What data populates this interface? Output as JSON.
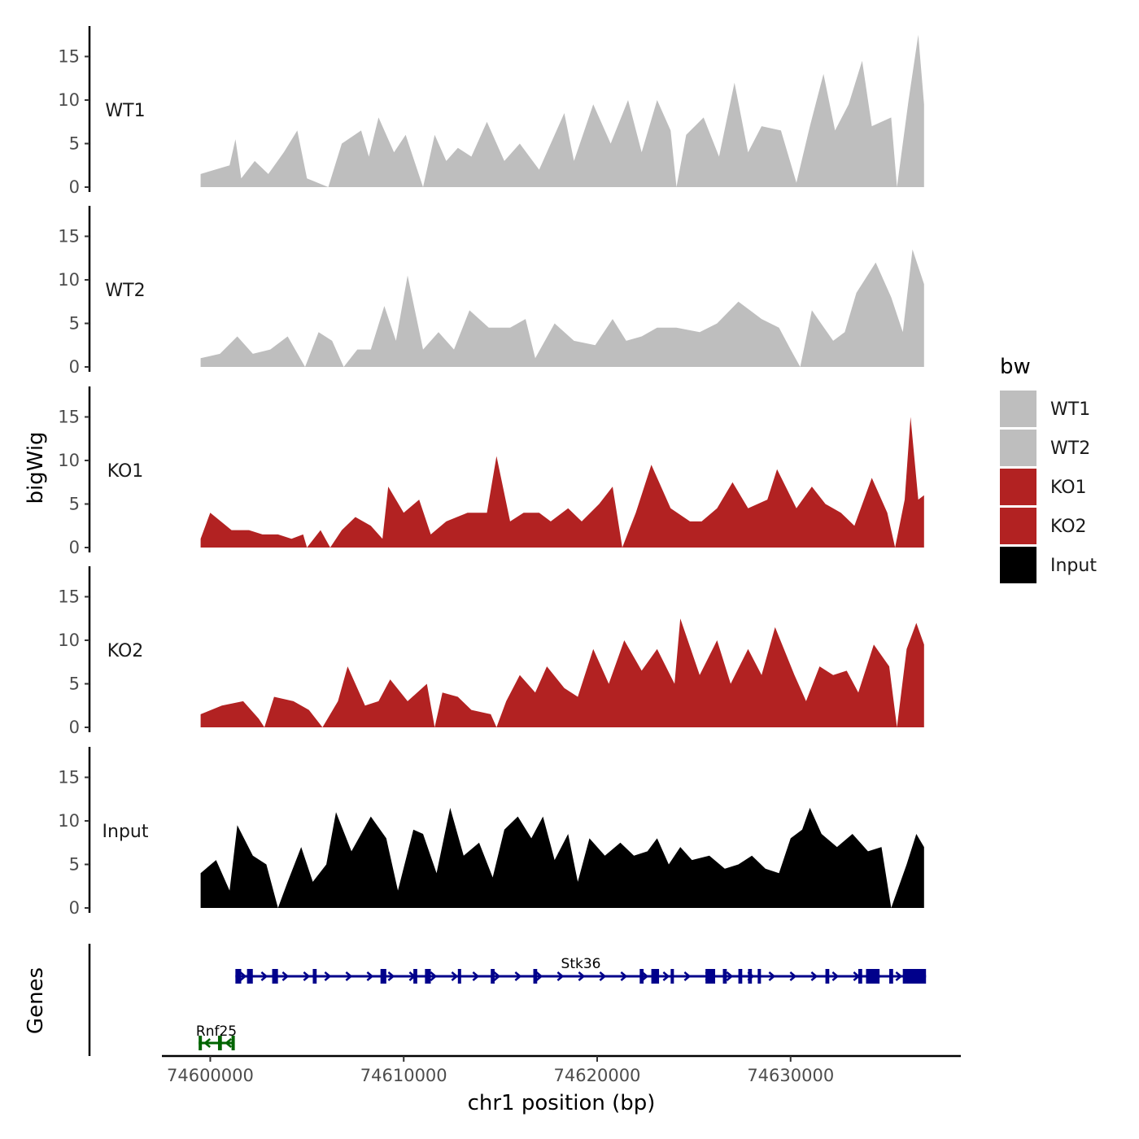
{
  "chart_data": {
    "type": "area",
    "region": {
      "chrom": "chr1",
      "start": 74599500,
      "end": 74637000
    },
    "xlabel": "chr1 position (bp)",
    "ylabel": "bigWig",
    "genes_label": "Genes",
    "xlim": [
      74597500,
      74638800
    ],
    "ylim": [
      0,
      18.5
    ],
    "yticks": [
      0,
      5,
      10,
      15
    ],
    "xticks": [
      74600000,
      74610000,
      74620000,
      74630000
    ],
    "xtick_labels": [
      "74600000",
      "74610000",
      "74620000",
      "74630000"
    ],
    "legend": {
      "title": "bw",
      "entries": [
        {
          "label": "WT1",
          "color": "#bebebe"
        },
        {
          "label": "WT2",
          "color": "#bebebe"
        },
        {
          "label": "KO1",
          "color": "#b22222"
        },
        {
          "label": "KO2",
          "color": "#b22222"
        },
        {
          "label": "Input",
          "color": "#000000"
        }
      ]
    },
    "series": [
      {
        "name": "WT1",
        "color": "#bebebe",
        "points": [
          [
            74599500,
            1.5
          ],
          [
            74601000,
            2.5
          ],
          [
            74601300,
            5.5
          ],
          [
            74601600,
            1
          ],
          [
            74602300,
            3
          ],
          [
            74603000,
            1.5
          ],
          [
            74603800,
            4
          ],
          [
            74604500,
            6.5
          ],
          [
            74605000,
            1
          ],
          [
            74606100,
            0
          ],
          [
            74606800,
            5
          ],
          [
            74607800,
            6.5
          ],
          [
            74608200,
            3.5
          ],
          [
            74608700,
            8
          ],
          [
            74609500,
            4
          ],
          [
            74610100,
            6
          ],
          [
            74611000,
            0
          ],
          [
            74611600,
            6
          ],
          [
            74612200,
            3
          ],
          [
            74612800,
            4.5
          ],
          [
            74613500,
            3.5
          ],
          [
            74614300,
            7.5
          ],
          [
            74615200,
            3
          ],
          [
            74616000,
            5
          ],
          [
            74617000,
            2
          ],
          [
            74618300,
            8.5
          ],
          [
            74618800,
            3
          ],
          [
            74619800,
            9.5
          ],
          [
            74620700,
            5
          ],
          [
            74621600,
            10
          ],
          [
            74622300,
            4
          ],
          [
            74623100,
            10
          ],
          [
            74623800,
            6.5
          ],
          [
            74624100,
            0
          ],
          [
            74624600,
            6
          ],
          [
            74625500,
            8
          ],
          [
            74626300,
            3.5
          ],
          [
            74627100,
            12
          ],
          [
            74627800,
            4
          ],
          [
            74628500,
            7
          ],
          [
            74629500,
            6.5
          ],
          [
            74630300,
            0.5
          ],
          [
            74631000,
            7
          ],
          [
            74631700,
            13
          ],
          [
            74632300,
            6.5
          ],
          [
            74633000,
            9.5
          ],
          [
            74633700,
            14.5
          ],
          [
            74634200,
            7
          ],
          [
            74635200,
            8
          ],
          [
            74635500,
            0
          ],
          [
            74636100,
            10
          ],
          [
            74636600,
            17.5
          ],
          [
            74636900,
            9.5
          ]
        ]
      },
      {
        "name": "WT2",
        "color": "#bebebe",
        "points": [
          [
            74599500,
            1
          ],
          [
            74600500,
            1.5
          ],
          [
            74601400,
            3.5
          ],
          [
            74602200,
            1.5
          ],
          [
            74603100,
            2
          ],
          [
            74604000,
            3.5
          ],
          [
            74604900,
            0
          ],
          [
            74605600,
            4
          ],
          [
            74606300,
            3
          ],
          [
            74606900,
            0
          ],
          [
            74607600,
            2
          ],
          [
            74608300,
            2
          ],
          [
            74609000,
            7
          ],
          [
            74609600,
            3
          ],
          [
            74610200,
            10.5
          ],
          [
            74611000,
            2
          ],
          [
            74611800,
            4
          ],
          [
            74612600,
            2
          ],
          [
            74613400,
            6.5
          ],
          [
            74614400,
            4.5
          ],
          [
            74615500,
            4.5
          ],
          [
            74616300,
            5.5
          ],
          [
            74616800,
            1
          ],
          [
            74617800,
            5
          ],
          [
            74618800,
            3
          ],
          [
            74619900,
            2.5
          ],
          [
            74620800,
            5.5
          ],
          [
            74621500,
            3
          ],
          [
            74622300,
            3.5
          ],
          [
            74623100,
            4.5
          ],
          [
            74624100,
            4.5
          ],
          [
            74625300,
            4
          ],
          [
            74626200,
            5
          ],
          [
            74627300,
            7.5
          ],
          [
            74628500,
            5.5
          ],
          [
            74629400,
            4.5
          ],
          [
            74630000,
            2
          ],
          [
            74630500,
            0
          ],
          [
            74631100,
            6.5
          ],
          [
            74632200,
            3
          ],
          [
            74632800,
            4
          ],
          [
            74633400,
            8.5
          ],
          [
            74634400,
            12
          ],
          [
            74635200,
            8
          ],
          [
            74635800,
            4
          ],
          [
            74636300,
            13.5
          ],
          [
            74636900,
            9.5
          ]
        ]
      },
      {
        "name": "KO1",
        "color": "#b22222",
        "points": [
          [
            74599500,
            1
          ],
          [
            74600000,
            4
          ],
          [
            74601100,
            2
          ],
          [
            74602000,
            2
          ],
          [
            74602700,
            1.5
          ],
          [
            74603500,
            1.5
          ],
          [
            74604200,
            1
          ],
          [
            74604800,
            1.5
          ],
          [
            74605000,
            0
          ],
          [
            74605700,
            2
          ],
          [
            74606200,
            0
          ],
          [
            74606800,
            2
          ],
          [
            74607500,
            3.5
          ],
          [
            74608300,
            2.5
          ],
          [
            74608900,
            1
          ],
          [
            74609200,
            7
          ],
          [
            74610000,
            4
          ],
          [
            74610800,
            5.5
          ],
          [
            74611400,
            1.5
          ],
          [
            74612200,
            3
          ],
          [
            74613300,
            4
          ],
          [
            74614300,
            4
          ],
          [
            74614800,
            10.5
          ],
          [
            74615500,
            3
          ],
          [
            74616200,
            4
          ],
          [
            74617000,
            4
          ],
          [
            74617600,
            3
          ],
          [
            74618500,
            4.5
          ],
          [
            74619200,
            3
          ],
          [
            74620100,
            5
          ],
          [
            74620800,
            7
          ],
          [
            74621300,
            0
          ],
          [
            74622000,
            4
          ],
          [
            74622800,
            9.5
          ],
          [
            74623800,
            4.5
          ],
          [
            74624800,
            3
          ],
          [
            74625400,
            3
          ],
          [
            74626200,
            4.5
          ],
          [
            74627000,
            7.5
          ],
          [
            74627800,
            4.5
          ],
          [
            74628800,
            5.5
          ],
          [
            74629300,
            9
          ],
          [
            74630300,
            4.5
          ],
          [
            74631100,
            7
          ],
          [
            74631800,
            5
          ],
          [
            74632600,
            4
          ],
          [
            74633300,
            2.5
          ],
          [
            74634200,
            8
          ],
          [
            74635000,
            4
          ],
          [
            74635400,
            0
          ],
          [
            74635900,
            5.5
          ],
          [
            74636200,
            15
          ],
          [
            74636600,
            5.5
          ],
          [
            74636900,
            6
          ]
        ]
      },
      {
        "name": "KO2",
        "color": "#b22222",
        "points": [
          [
            74599500,
            1.5
          ],
          [
            74600600,
            2.5
          ],
          [
            74601700,
            3
          ],
          [
            74602500,
            1
          ],
          [
            74602800,
            0
          ],
          [
            74603300,
            3.5
          ],
          [
            74604300,
            3
          ],
          [
            74605100,
            2
          ],
          [
            74605800,
            0
          ],
          [
            74606600,
            3
          ],
          [
            74607100,
            7
          ],
          [
            74608000,
            2.5
          ],
          [
            74608700,
            3
          ],
          [
            74609300,
            5.5
          ],
          [
            74610200,
            3
          ],
          [
            74611200,
            5
          ],
          [
            74611600,
            0
          ],
          [
            74612000,
            4
          ],
          [
            74612800,
            3.5
          ],
          [
            74613500,
            2
          ],
          [
            74614500,
            1.5
          ],
          [
            74614800,
            0
          ],
          [
            74615300,
            3
          ],
          [
            74616000,
            6
          ],
          [
            74616800,
            4
          ],
          [
            74617400,
            7
          ],
          [
            74618300,
            4.5
          ],
          [
            74619000,
            3.5
          ],
          [
            74619800,
            9
          ],
          [
            74620600,
            5
          ],
          [
            74621400,
            10
          ],
          [
            74622300,
            6.5
          ],
          [
            74623100,
            9
          ],
          [
            74624000,
            5
          ],
          [
            74624300,
            12.5
          ],
          [
            74625300,
            6
          ],
          [
            74626200,
            10
          ],
          [
            74626900,
            5
          ],
          [
            74627800,
            9
          ],
          [
            74628500,
            6
          ],
          [
            74629200,
            11.5
          ],
          [
            74630200,
            6
          ],
          [
            74630800,
            3
          ],
          [
            74631500,
            7
          ],
          [
            74632200,
            6
          ],
          [
            74632900,
            6.5
          ],
          [
            74633500,
            4
          ],
          [
            74634300,
            9.5
          ],
          [
            74635100,
            7
          ],
          [
            74635500,
            0
          ],
          [
            74636000,
            9
          ],
          [
            74636500,
            12
          ],
          [
            74636900,
            9.5
          ]
        ]
      },
      {
        "name": "Input",
        "color": "#000000",
        "points": [
          [
            74599500,
            4
          ],
          [
            74600300,
            5.5
          ],
          [
            74601000,
            2
          ],
          [
            74601400,
            9.5
          ],
          [
            74602200,
            6
          ],
          [
            74602900,
            5
          ],
          [
            74603500,
            0
          ],
          [
            74604000,
            3
          ],
          [
            74604700,
            7
          ],
          [
            74605300,
            3
          ],
          [
            74606000,
            5
          ],
          [
            74606500,
            11
          ],
          [
            74607300,
            6.5
          ],
          [
            74608300,
            10.5
          ],
          [
            74609100,
            8
          ],
          [
            74609700,
            2
          ],
          [
            74610500,
            9
          ],
          [
            74611000,
            8.5
          ],
          [
            74611700,
            4
          ],
          [
            74612400,
            11.5
          ],
          [
            74613100,
            6
          ],
          [
            74613900,
            7.5
          ],
          [
            74614600,
            3.5
          ],
          [
            74615200,
            9
          ],
          [
            74615900,
            10.5
          ],
          [
            74616600,
            8
          ],
          [
            74617200,
            10.5
          ],
          [
            74617800,
            5.5
          ],
          [
            74618500,
            8.5
          ],
          [
            74619000,
            3
          ],
          [
            74619600,
            8
          ],
          [
            74620400,
            6
          ],
          [
            74621200,
            7.5
          ],
          [
            74621900,
            6
          ],
          [
            74622600,
            6.5
          ],
          [
            74623100,
            8
          ],
          [
            74623700,
            5
          ],
          [
            74624300,
            7
          ],
          [
            74624900,
            5.5
          ],
          [
            74625800,
            6
          ],
          [
            74626600,
            4.5
          ],
          [
            74627300,
            5
          ],
          [
            74628000,
            6
          ],
          [
            74628700,
            4.5
          ],
          [
            74629400,
            4
          ],
          [
            74630000,
            8
          ],
          [
            74630600,
            9
          ],
          [
            74631000,
            11.5
          ],
          [
            74631600,
            8.5
          ],
          [
            74632400,
            7
          ],
          [
            74633200,
            8.5
          ],
          [
            74634000,
            6.5
          ],
          [
            74634700,
            7
          ],
          [
            74635200,
            0
          ],
          [
            74636000,
            5
          ],
          [
            74636500,
            8.5
          ],
          [
            74636900,
            7
          ]
        ]
      }
    ],
    "genes": [
      {
        "name": "Stk36",
        "strand": "+",
        "color": "#00008b",
        "start": 74601300,
        "end": 74637000,
        "exons": [
          [
            74601300,
            74601600
          ],
          [
            74601900,
            74602200
          ],
          [
            74603200,
            74603500
          ],
          [
            74605300,
            74605500
          ],
          [
            74608800,
            74609100
          ],
          [
            74610500,
            74610700
          ],
          [
            74611100,
            74611400
          ],
          [
            74612800,
            74612900
          ],
          [
            74614500,
            74614700
          ],
          [
            74616700,
            74616900
          ],
          [
            74622200,
            74622400
          ],
          [
            74622800,
            74623200
          ],
          [
            74623800,
            74623900
          ],
          [
            74625600,
            74626100
          ],
          [
            74626500,
            74626700
          ],
          [
            74627300,
            74627500
          ],
          [
            74627800,
            74628000
          ],
          [
            74628300,
            74628400
          ],
          [
            74631800,
            74632000
          ],
          [
            74633500,
            74633700
          ],
          [
            74633900,
            74634600
          ],
          [
            74635100,
            74635300
          ],
          [
            74635800,
            74637000
          ]
        ]
      },
      {
        "name": "Rnf25",
        "strand": "-",
        "color": "#006400",
        "start": 74599400,
        "end": 74601200,
        "exons": [
          [
            74599400,
            74599500
          ],
          [
            74600400,
            74600600
          ],
          [
            74601100,
            74601200
          ]
        ]
      }
    ]
  }
}
